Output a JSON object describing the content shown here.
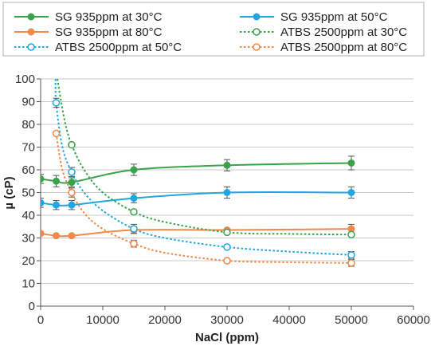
{
  "chart_data": {
    "type": "line",
    "xlabel": "NaCl (ppm)",
    "ylabel": "µ (cP)",
    "xlim": [
      0,
      60000
    ],
    "ylim": [
      0,
      100
    ],
    "xticks": [
      0,
      10000,
      20000,
      30000,
      40000,
      50000,
      60000
    ],
    "yticks": [
      0,
      10,
      20,
      30,
      40,
      50,
      60,
      70,
      80,
      90,
      100
    ],
    "grid": "horizontal",
    "legend_position": "top",
    "series": [
      {
        "name": "SG 935ppm at 30°C",
        "color": "#3aa34a",
        "style": "solid",
        "marker": "filled-circle",
        "points": [
          {
            "x": 0,
            "y": 56,
            "err": 2
          },
          {
            "x": 2500,
            "y": 55,
            "err": 2.5
          },
          {
            "x": 5000,
            "y": 54.5,
            "err": 2
          },
          {
            "x": 15000,
            "y": 60,
            "err": 2.5
          },
          {
            "x": 30000,
            "y": 62,
            "err": 2.5
          },
          {
            "x": 50000,
            "y": 63,
            "err": 3
          }
        ]
      },
      {
        "name": "SG 935ppm at 50°C",
        "color": "#1ea7e1",
        "style": "solid",
        "marker": "filled-circle",
        "points": [
          {
            "x": 0,
            "y": 45.5,
            "err": 2
          },
          {
            "x": 2500,
            "y": 44.5,
            "err": 2
          },
          {
            "x": 5000,
            "y": 44.5,
            "err": 2
          },
          {
            "x": 15000,
            "y": 47.5,
            "err": 2
          },
          {
            "x": 30000,
            "y": 50,
            "err": 2.5
          },
          {
            "x": 50000,
            "y": 50,
            "err": 2.5
          }
        ]
      },
      {
        "name": "SG 935ppm at 80°C",
        "color": "#f0894a",
        "style": "solid",
        "marker": "filled-circle",
        "points": [
          {
            "x": 0,
            "y": 32,
            "err": 0
          },
          {
            "x": 2500,
            "y": 31,
            "err": 0
          },
          {
            "x": 5000,
            "y": 31,
            "err": 0
          },
          {
            "x": 15000,
            "y": 33.5,
            "err": 1.5
          },
          {
            "x": 30000,
            "y": 33.5,
            "err": 0
          },
          {
            "x": 50000,
            "y": 34,
            "err": 2
          }
        ]
      },
      {
        "name": "ATBS 2500ppm at 30°C",
        "color": "#3aa34a",
        "style": "dotted",
        "marker": "open-circle",
        "curve": [
          [
            2700,
            100
          ],
          [
            3300,
            90
          ],
          [
            4000,
            80
          ],
          [
            5000,
            71
          ],
          [
            7000,
            60
          ],
          [
            10000,
            50
          ],
          [
            15000,
            41.5
          ],
          [
            20000,
            37
          ],
          [
            30000,
            32.5
          ],
          [
            40000,
            31.8
          ],
          [
            50000,
            31.5
          ]
        ],
        "points": [
          {
            "x": 5000,
            "y": 71,
            "err": 0
          },
          {
            "x": 15000,
            "y": 41.5,
            "err": 0
          },
          {
            "x": 30000,
            "y": 32.5,
            "err": 0
          },
          {
            "x": 50000,
            "y": 31.5,
            "err": 0
          }
        ]
      },
      {
        "name": "ATBS 2500ppm at 50°C",
        "color": "#1ea7e1",
        "style": "dotted",
        "marker": "open-circle",
        "curve": [
          [
            2400,
            100
          ],
          [
            2500,
            89.5
          ],
          [
            3500,
            70
          ],
          [
            5000,
            59
          ],
          [
            7000,
            50
          ],
          [
            10000,
            42
          ],
          [
            15000,
            34
          ],
          [
            20000,
            30
          ],
          [
            30000,
            26
          ],
          [
            40000,
            24
          ],
          [
            50000,
            22.5
          ]
        ],
        "points": [
          {
            "x": 2500,
            "y": 89.5,
            "err": 2
          },
          {
            "x": 5000,
            "y": 59,
            "err": 2
          },
          {
            "x": 15000,
            "y": 34,
            "err": 2
          },
          {
            "x": 30000,
            "y": 26,
            "err": 0
          },
          {
            "x": 50000,
            "y": 22.5,
            "err": 1.5
          }
        ]
      },
      {
        "name": "ATBS 2500ppm at 80°C",
        "color": "#f0894a",
        "style": "dotted",
        "marker": "open-circle",
        "curve": [
          [
            2500,
            76
          ],
          [
            3500,
            60
          ],
          [
            5000,
            50
          ],
          [
            7000,
            41
          ],
          [
            10000,
            34
          ],
          [
            15000,
            27.5
          ],
          [
            20000,
            23.5
          ],
          [
            30000,
            20
          ],
          [
            40000,
            19.3
          ],
          [
            50000,
            19
          ]
        ],
        "points": [
          {
            "x": 2500,
            "y": 76,
            "err": 0
          },
          {
            "x": 5000,
            "y": 50,
            "err": 2
          },
          {
            "x": 15000,
            "y": 27.5,
            "err": 1.5
          },
          {
            "x": 30000,
            "y": 20,
            "err": 0
          },
          {
            "x": 50000,
            "y": 19,
            "err": 1.5
          }
        ]
      }
    ]
  }
}
